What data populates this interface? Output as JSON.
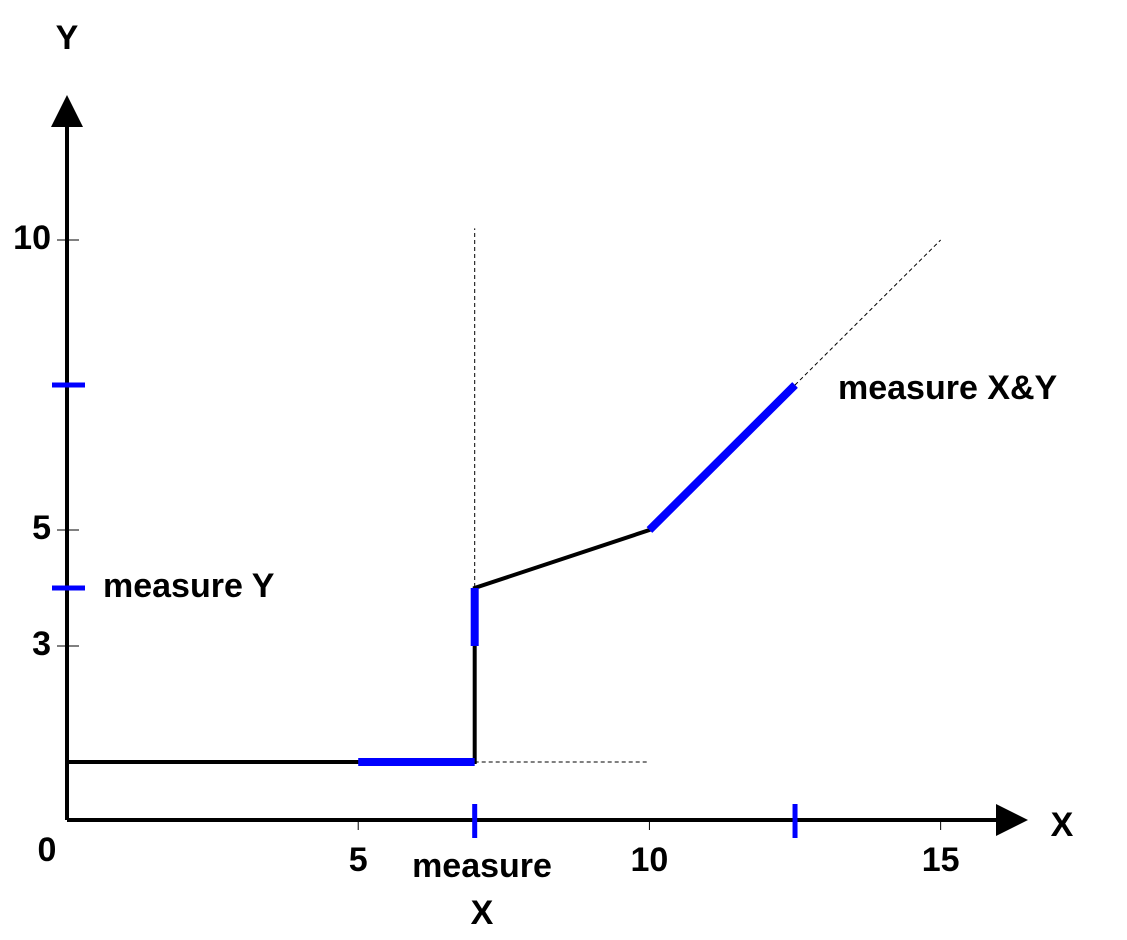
{
  "chart_data": {
    "type": "line",
    "x_label": "X",
    "y_label": "Y",
    "origin_label": "0",
    "xlim": [
      0,
      16.5
    ],
    "ylim": [
      0,
      12.5
    ],
    "xticks": [
      5,
      10,
      15
    ],
    "yticks": [
      3,
      5,
      10
    ],
    "series": [
      {
        "color": "#000000",
        "x": [
          0,
          7,
          7,
          10,
          12.5
        ],
        "values": [
          1,
          1,
          4,
          5,
          7.5
        ]
      }
    ],
    "highlights": [
      {
        "color": "#0000ff",
        "x": [
          5,
          7
        ],
        "values": [
          1,
          1
        ]
      },
      {
        "color": "#0000ff",
        "x": [
          7,
          7
        ],
        "values": [
          3,
          4
        ]
      },
      {
        "color": "#0000ff",
        "x": [
          10,
          12.5
        ],
        "values": [
          5,
          7.5
        ]
      }
    ],
    "guides": [
      {
        "x": [
          7,
          7
        ],
        "values": [
          1,
          10.2
        ]
      },
      {
        "x": [
          7,
          10
        ],
        "values": [
          1,
          1
        ]
      },
      {
        "x": [
          12.5,
          15
        ],
        "values": [
          7.5,
          10
        ]
      }
    ],
    "x_marks": [
      7,
      12.5
    ],
    "y_marks": [
      4,
      7.5
    ],
    "mark_color": "#0000ff",
    "annotations": {
      "measure_x": [
        "measure",
        "X"
      ],
      "measure_y": "measure Y",
      "measure_xy": "measure X&Y"
    }
  }
}
